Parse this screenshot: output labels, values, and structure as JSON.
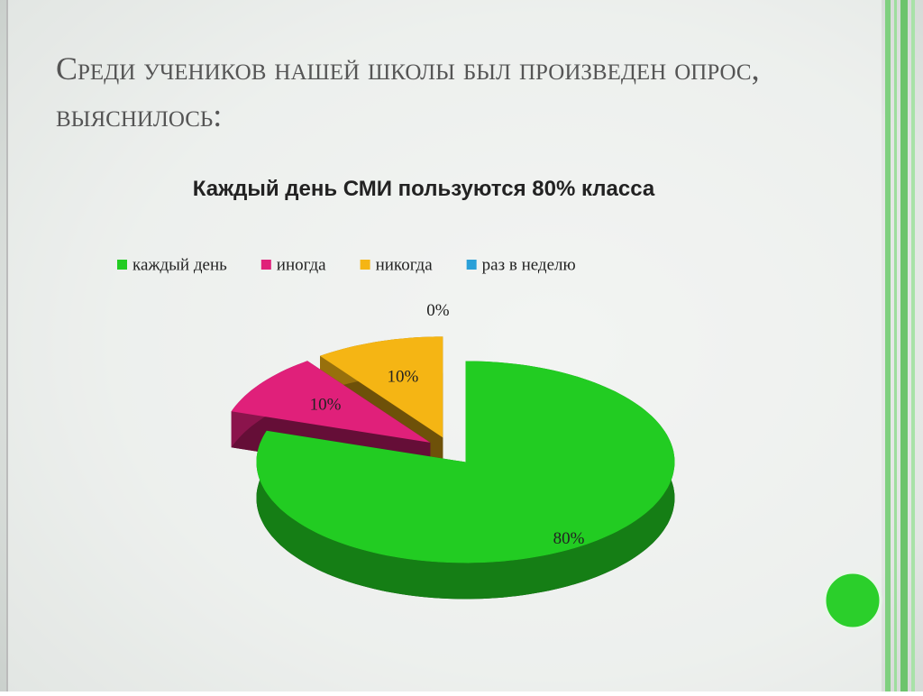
{
  "slide_title": "Среди учеников нашей школы был произведен опрос, выяснилось:",
  "chart_data": {
    "type": "pie",
    "title": "Каждый день СМИ пользуются 80% класса",
    "categories": [
      "каждый день",
      "иногда",
      "никогда",
      "раз в неделю"
    ],
    "values": [
      80,
      10,
      10,
      0
    ],
    "value_labels": [
      "80%",
      "10%",
      "10%",
      "0%"
    ],
    "colors": [
      "#22cc22",
      "#e0207a",
      "#f5b514",
      "#2aa0d8"
    ],
    "legend": "top"
  }
}
